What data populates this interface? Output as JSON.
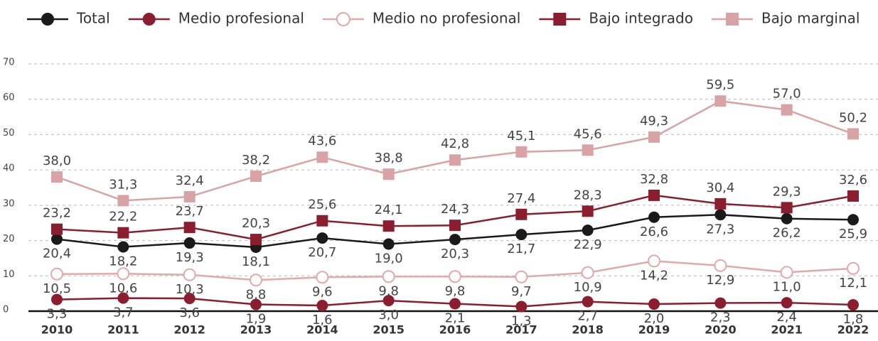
{
  "chart_data": {
    "type": "line",
    "categories": [
      "2010",
      "2011",
      "2012",
      "2013",
      "2014",
      "2015",
      "2016",
      "2017",
      "2018",
      "2019",
      "2020",
      "2021",
      "2022"
    ],
    "ylim": [
      0,
      70
    ],
    "yticks": [
      0,
      10,
      20,
      30,
      40,
      50,
      60,
      70
    ],
    "grid": true,
    "legend": "top",
    "series": [
      {
        "name": "Total",
        "color": "#1a1a1a",
        "marker": "circle",
        "label_position": "below",
        "values": [
          20.4,
          18.2,
          19.3,
          18.1,
          20.7,
          19.0,
          20.3,
          21.7,
          22.9,
          26.6,
          27.3,
          26.2,
          25.9
        ],
        "value_labels": [
          "20,4",
          "18,2",
          "19,3",
          "18,1",
          "20,7",
          "19,0",
          "20,3",
          "21,7",
          "22,9",
          "26,6",
          "27,3",
          "26,2",
          "25,9"
        ]
      },
      {
        "name": "Medio profesional",
        "color": "#8b1e2e",
        "marker": "circle",
        "label_position": "below",
        "values": [
          3.3,
          3.7,
          3.6,
          1.9,
          1.6,
          3.0,
          2.1,
          1.3,
          2.7,
          2.0,
          2.3,
          2.4,
          1.8
        ],
        "value_labels": [
          "3,3",
          "3,7",
          "3,6",
          "1,9",
          "1,6",
          "3,0",
          "2,1",
          "1,3",
          "2,7",
          "2,0",
          "2,3",
          "2,4",
          "1,8"
        ]
      },
      {
        "name": "Medio no profesional",
        "color": "#e0a9ab",
        "marker": "circle-open",
        "label_position": "below",
        "values": [
          10.5,
          10.6,
          10.3,
          8.8,
          9.6,
          9.8,
          9.8,
          9.7,
          10.9,
          14.2,
          12.9,
          11.0,
          12.1
        ],
        "value_labels": [
          "10,5",
          "10,6",
          "10,3",
          "8,8",
          "9,6",
          "9,8",
          "9,8",
          "9,7",
          "10,9",
          "14,2",
          "12,9",
          "11,0",
          "12,1"
        ]
      },
      {
        "name": "Bajo integrado",
        "color": "#8b1e2e",
        "marker": "square",
        "label_position": "above",
        "values": [
          23.2,
          22.2,
          23.7,
          20.3,
          25.6,
          24.1,
          24.3,
          27.4,
          28.3,
          32.8,
          30.4,
          29.3,
          32.6
        ],
        "value_labels": [
          "23,2",
          "22,2",
          "23,7",
          "20,3",
          "25,6",
          "24,1",
          "24,3",
          "27,4",
          "28,3",
          "32,8",
          "30,4",
          "29,3",
          "32,6"
        ]
      },
      {
        "name": "Bajo marginal",
        "color": "#d9a3a5",
        "marker": "square",
        "label_position": "above",
        "values": [
          38.0,
          31.3,
          32.4,
          38.2,
          43.6,
          38.8,
          42.8,
          45.1,
          45.6,
          49.3,
          59.5,
          57.0,
          50.2
        ],
        "value_labels": [
          "38,0",
          "31,3",
          "32,4",
          "38,2",
          "43,6",
          "38,8",
          "42,8",
          "45,1",
          "45,6",
          "49,3",
          "59,5",
          "57,0",
          "50,2"
        ]
      }
    ]
  }
}
